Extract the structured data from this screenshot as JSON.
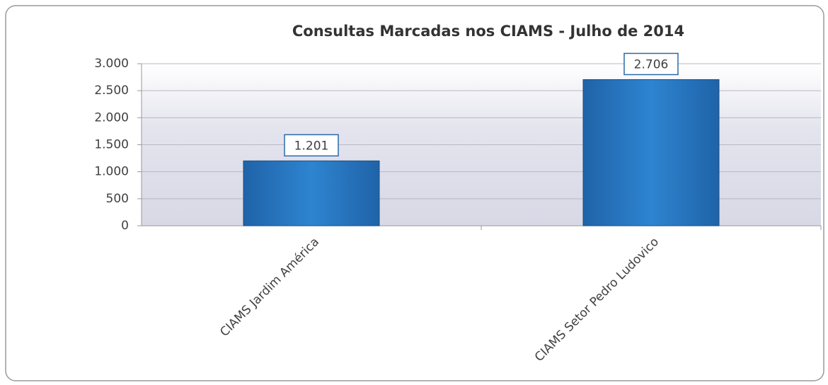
{
  "chart_data": {
    "type": "bar",
    "title": "Consultas Marcadas nos CIAMS - Julho de 2014",
    "categories": [
      "CIAMS Jardim América",
      "CIAMS Setor Pedro Ludovico"
    ],
    "values": [
      1201,
      2706
    ],
    "value_labels": [
      "1.201",
      "2.706"
    ],
    "color": "#2a78c2",
    "ylim": [
      0,
      3000
    ],
    "yticks": [
      0,
      500,
      {
        "value": 1000,
        "label": "1.000"
      },
      {
        "value": 1500,
        "label": "1.500"
      },
      {
        "value": 2000,
        "label": "2.000"
      },
      {
        "value": 2500,
        "label": "2.500"
      },
      {
        "value": 3000,
        "label": "3.000"
      }
    ],
    "grid": true
  }
}
